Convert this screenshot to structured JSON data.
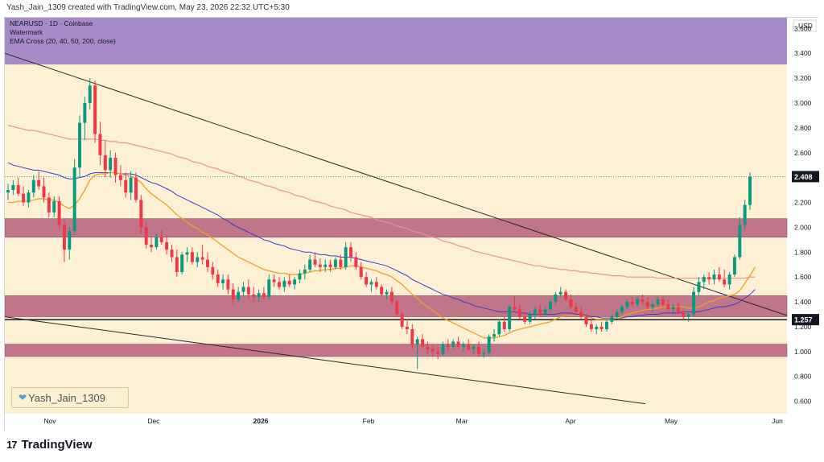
{
  "header": {
    "credit": "Yash_Jain_1309 created with TradingView.com, May 23, 2026 22:32 UTC+5:30"
  },
  "legend": {
    "symbol": "NEARUSD · 1D · Coinbase",
    "line2": "Watermark",
    "indicator": "EMA Cross (20, 40, 50, 200, close)"
  },
  "watermark": {
    "text": "Yash_Jain_1309",
    "icon": "heart-icon"
  },
  "footer": {
    "brand": "TradingView",
    "logo_icon": "tradingview-logo-icon"
  },
  "colors": {
    "background": "#fdf0d4",
    "up": "#089981",
    "down": "#f23645",
    "zone_purple": "#a68bc6",
    "zone_red": "#b5607a",
    "ema_fast": "#f0a020",
    "ema_slow": "#3b3bcf",
    "ema_long": "#e8909a",
    "trendline": "#2a2a2a"
  },
  "chart_data": {
    "type": "candlestick",
    "ylabel": "USD",
    "price_ticks": [
      "0.600",
      "0.800",
      "1.000",
      "1.200",
      "1.400",
      "1.600",
      "1.800",
      "2.000",
      "2.200",
      "2.400",
      "2.600",
      "2.800",
      "3.000",
      "3.200",
      "3.400",
      "3.600"
    ],
    "ylim": [
      0.5,
      3.68
    ],
    "x_ticks": [
      "Nov",
      "Dec",
      "2026",
      "Feb",
      "Mar",
      "Apr",
      "May",
      "Jun"
    ],
    "last_price": "2.408",
    "level_label": "1.257",
    "horizontal_level": 1.257,
    "zones": [
      {
        "name": "upper-supply-zone",
        "from": 3.31,
        "to": 3.74
      },
      {
        "name": "resistance-zone-2",
        "from": 1.92,
        "to": 2.07
      },
      {
        "name": "support-zone-1",
        "from": 1.28,
        "to": 1.45
      },
      {
        "name": "support-zone-2",
        "from": 0.96,
        "to": 1.06
      }
    ],
    "candles": [
      [
        2.28,
        2.35,
        2.22,
        2.3
      ],
      [
        2.3,
        2.38,
        2.26,
        2.34
      ],
      [
        2.34,
        2.4,
        2.25,
        2.27
      ],
      [
        2.27,
        2.33,
        2.17,
        2.2
      ],
      [
        2.2,
        2.3,
        2.16,
        2.28
      ],
      [
        2.28,
        2.42,
        2.24,
        2.38
      ],
      [
        2.38,
        2.45,
        2.3,
        2.33
      ],
      [
        2.33,
        2.4,
        2.2,
        2.24
      ],
      [
        2.24,
        2.28,
        2.08,
        2.12
      ],
      [
        2.12,
        2.25,
        2.08,
        2.21
      ],
      [
        2.21,
        2.25,
        1.98,
        2.02
      ],
      [
        2.02,
        2.06,
        1.72,
        1.82
      ],
      [
        1.82,
        2.0,
        1.74,
        1.97
      ],
      [
        1.97,
        2.55,
        1.94,
        2.48
      ],
      [
        2.48,
        2.9,
        2.4,
        2.84
      ],
      [
        2.84,
        3.05,
        2.7,
        3.0
      ],
      [
        3.0,
        3.2,
        2.95,
        3.14
      ],
      [
        3.14,
        3.18,
        2.68,
        2.75
      ],
      [
        2.75,
        2.85,
        2.5,
        2.58
      ],
      [
        2.58,
        2.7,
        2.4,
        2.46
      ],
      [
        2.46,
        2.62,
        2.4,
        2.56
      ],
      [
        2.56,
        2.6,
        2.36,
        2.42
      ],
      [
        2.42,
        2.5,
        2.33,
        2.38
      ],
      [
        2.38,
        2.44,
        2.24,
        2.28
      ],
      [
        2.28,
        2.45,
        2.22,
        2.4
      ],
      [
        2.4,
        2.44,
        2.2,
        2.22
      ],
      [
        2.22,
        2.26,
        1.95,
        2.0
      ],
      [
        2.0,
        2.04,
        1.83,
        1.86
      ],
      [
        1.86,
        1.92,
        1.8,
        1.84
      ],
      [
        1.84,
        1.95,
        1.82,
        1.92
      ],
      [
        1.92,
        1.98,
        1.86,
        1.88
      ],
      [
        1.88,
        1.94,
        1.78,
        1.82
      ],
      [
        1.82,
        1.86,
        1.72,
        1.76
      ],
      [
        1.76,
        1.82,
        1.6,
        1.64
      ],
      [
        1.64,
        1.8,
        1.62,
        1.78
      ],
      [
        1.78,
        1.84,
        1.72,
        1.8
      ],
      [
        1.8,
        1.84,
        1.7,
        1.72
      ],
      [
        1.72,
        1.8,
        1.68,
        1.76
      ],
      [
        1.76,
        1.86,
        1.7,
        1.74
      ],
      [
        1.74,
        1.8,
        1.64,
        1.68
      ],
      [
        1.68,
        1.72,
        1.58,
        1.62
      ],
      [
        1.62,
        1.66,
        1.52,
        1.55
      ],
      [
        1.55,
        1.62,
        1.5,
        1.58
      ],
      [
        1.58,
        1.62,
        1.46,
        1.5
      ],
      [
        1.5,
        1.55,
        1.38,
        1.42
      ],
      [
        1.42,
        1.52,
        1.4,
        1.48
      ],
      [
        1.48,
        1.56,
        1.44,
        1.52
      ],
      [
        1.52,
        1.58,
        1.42,
        1.46
      ],
      [
        1.46,
        1.52,
        1.4,
        1.44
      ],
      [
        1.44,
        1.5,
        1.4,
        1.47
      ],
      [
        1.47,
        1.52,
        1.42,
        1.44
      ],
      [
        1.44,
        1.62,
        1.42,
        1.58
      ],
      [
        1.58,
        1.62,
        1.52,
        1.56
      ],
      [
        1.56,
        1.6,
        1.5,
        1.52
      ],
      [
        1.52,
        1.6,
        1.48,
        1.57
      ],
      [
        1.57,
        1.62,
        1.52,
        1.54
      ],
      [
        1.54,
        1.6,
        1.5,
        1.58
      ],
      [
        1.58,
        1.66,
        1.55,
        1.63
      ],
      [
        1.63,
        1.7,
        1.58,
        1.66
      ],
      [
        1.66,
        1.78,
        1.64,
        1.74
      ],
      [
        1.74,
        1.8,
        1.68,
        1.7
      ],
      [
        1.7,
        1.75,
        1.64,
        1.68
      ],
      [
        1.68,
        1.74,
        1.64,
        1.7
      ],
      [
        1.7,
        1.74,
        1.64,
        1.68
      ],
      [
        1.68,
        1.76,
        1.66,
        1.74
      ],
      [
        1.74,
        1.78,
        1.66,
        1.68
      ],
      [
        1.68,
        1.88,
        1.66,
        1.84
      ],
      [
        1.84,
        1.88,
        1.72,
        1.76
      ],
      [
        1.76,
        1.8,
        1.66,
        1.68
      ],
      [
        1.68,
        1.72,
        1.58,
        1.6
      ],
      [
        1.6,
        1.64,
        1.52,
        1.54
      ],
      [
        1.54,
        1.58,
        1.48,
        1.56
      ],
      [
        1.56,
        1.6,
        1.5,
        1.52
      ],
      [
        1.52,
        1.54,
        1.44,
        1.46
      ],
      [
        1.46,
        1.5,
        1.42,
        1.48
      ],
      [
        1.48,
        1.52,
        1.38,
        1.4
      ],
      [
        1.4,
        1.42,
        1.28,
        1.3
      ],
      [
        1.3,
        1.32,
        1.18,
        1.2
      ],
      [
        1.2,
        1.26,
        1.14,
        1.18
      ],
      [
        1.18,
        1.22,
        1.02,
        1.06
      ],
      [
        1.06,
        1.12,
        0.86,
        1.1
      ],
      [
        1.1,
        1.14,
        1.02,
        1.04
      ],
      [
        1.04,
        1.08,
        0.98,
        1.02
      ],
      [
        1.02,
        1.06,
        0.96,
        1.0
      ],
      [
        1.0,
        1.04,
        0.94,
        0.98
      ],
      [
        0.98,
        1.08,
        0.96,
        1.06
      ],
      [
        1.06,
        1.1,
        1.0,
        1.04
      ],
      [
        1.04,
        1.1,
        1.02,
        1.08
      ],
      [
        1.08,
        1.12,
        1.02,
        1.04
      ],
      [
        1.04,
        1.08,
        1.0,
        1.06
      ],
      [
        1.06,
        1.1,
        1.0,
        1.02
      ],
      [
        1.02,
        1.06,
        0.98,
        1.04
      ],
      [
        1.04,
        1.08,
        0.96,
        0.98
      ],
      [
        0.98,
        1.02,
        0.95,
        0.99
      ],
      [
        0.99,
        1.14,
        0.97,
        1.12
      ],
      [
        1.12,
        1.18,
        1.08,
        1.14
      ],
      [
        1.14,
        1.26,
        1.12,
        1.24
      ],
      [
        1.24,
        1.28,
        1.16,
        1.18
      ],
      [
        1.18,
        1.38,
        1.16,
        1.36
      ],
      [
        1.36,
        1.44,
        1.32,
        1.34
      ],
      [
        1.34,
        1.38,
        1.26,
        1.28
      ],
      [
        1.28,
        1.32,
        1.22,
        1.24
      ],
      [
        1.24,
        1.32,
        1.22,
        1.3
      ],
      [
        1.3,
        1.36,
        1.26,
        1.34
      ],
      [
        1.34,
        1.38,
        1.28,
        1.3
      ],
      [
        1.3,
        1.36,
        1.28,
        1.34
      ],
      [
        1.34,
        1.42,
        1.32,
        1.4
      ],
      [
        1.4,
        1.48,
        1.38,
        1.46
      ],
      [
        1.46,
        1.52,
        1.44,
        1.48
      ],
      [
        1.48,
        1.5,
        1.4,
        1.42
      ],
      [
        1.42,
        1.46,
        1.34,
        1.36
      ],
      [
        1.36,
        1.4,
        1.3,
        1.32
      ],
      [
        1.32,
        1.36,
        1.26,
        1.28
      ],
      [
        1.28,
        1.3,
        1.2,
        1.22
      ],
      [
        1.22,
        1.26,
        1.16,
        1.18
      ],
      [
        1.18,
        1.22,
        1.14,
        1.2
      ],
      [
        1.2,
        1.24,
        1.16,
        1.18
      ],
      [
        1.18,
        1.26,
        1.16,
        1.24
      ],
      [
        1.24,
        1.3,
        1.22,
        1.28
      ],
      [
        1.28,
        1.34,
        1.26,
        1.32
      ],
      [
        1.32,
        1.38,
        1.3,
        1.36
      ],
      [
        1.36,
        1.42,
        1.34,
        1.4
      ],
      [
        1.4,
        1.44,
        1.36,
        1.38
      ],
      [
        1.38,
        1.44,
        1.36,
        1.42
      ],
      [
        1.42,
        1.46,
        1.38,
        1.4
      ],
      [
        1.4,
        1.44,
        1.34,
        1.36
      ],
      [
        1.36,
        1.4,
        1.32,
        1.38
      ],
      [
        1.38,
        1.44,
        1.36,
        1.42
      ],
      [
        1.42,
        1.44,
        1.36,
        1.38
      ],
      [
        1.38,
        1.42,
        1.32,
        1.34
      ],
      [
        1.34,
        1.38,
        1.3,
        1.36
      ],
      [
        1.36,
        1.4,
        1.3,
        1.32
      ],
      [
        1.32,
        1.34,
        1.26,
        1.28
      ],
      [
        1.28,
        1.32,
        1.24,
        1.3
      ],
      [
        1.3,
        1.52,
        1.28,
        1.48
      ],
      [
        1.48,
        1.6,
        1.44,
        1.56
      ],
      [
        1.56,
        1.62,
        1.5,
        1.6
      ],
      [
        1.6,
        1.64,
        1.54,
        1.58
      ],
      [
        1.58,
        1.66,
        1.54,
        1.62
      ],
      [
        1.62,
        1.68,
        1.56,
        1.58
      ],
      [
        1.58,
        1.66,
        1.52,
        1.54
      ],
      [
        1.54,
        1.64,
        1.5,
        1.62
      ],
      [
        1.62,
        1.78,
        1.6,
        1.76
      ],
      [
        1.76,
        2.08,
        1.74,
        2.02
      ],
      [
        2.02,
        2.22,
        1.98,
        2.18
      ],
      [
        2.18,
        2.44,
        2.14,
        2.408
      ]
    ],
    "ema_20": [
      2.2,
      2.2,
      2.21,
      2.21,
      2.21,
      2.22,
      2.23,
      2.23,
      2.22,
      2.22,
      2.2,
      2.17,
      2.15,
      2.18,
      2.23,
      2.3,
      2.38,
      2.42,
      2.43,
      2.43,
      2.44,
      2.44,
      2.43,
      2.42,
      2.41,
      2.39,
      2.36,
      2.31,
      2.27,
      2.24,
      2.21,
      2.18,
      2.14,
      2.1,
      2.07,
      2.04,
      2.01,
      1.99,
      1.96,
      1.94,
      1.91,
      1.88,
      1.85,
      1.82,
      1.79,
      1.76,
      1.74,
      1.72,
      1.7,
      1.68,
      1.66,
      1.65,
      1.64,
      1.63,
      1.63,
      1.62,
      1.62,
      1.62,
      1.63,
      1.64,
      1.65,
      1.65,
      1.66,
      1.66,
      1.67,
      1.67,
      1.68,
      1.69,
      1.69,
      1.68,
      1.67,
      1.66,
      1.65,
      1.63,
      1.62,
      1.6,
      1.57,
      1.54,
      1.5,
      1.46,
      1.43,
      1.39,
      1.36,
      1.33,
      1.3,
      1.27,
      1.25,
      1.23,
      1.21,
      1.19,
      1.17,
      1.15,
      1.13,
      1.11,
      1.11,
      1.11,
      1.12,
      1.13,
      1.15,
      1.17,
      1.18,
      1.19,
      1.2,
      1.21,
      1.22,
      1.23,
      1.24,
      1.26,
      1.28,
      1.29,
      1.29,
      1.29,
      1.29,
      1.28,
      1.27,
      1.26,
      1.26,
      1.26,
      1.26,
      1.27,
      1.28,
      1.3,
      1.31,
      1.32,
      1.33,
      1.34,
      1.34,
      1.35,
      1.36,
      1.36,
      1.36,
      1.36,
      1.36,
      1.35,
      1.35,
      1.36,
      1.38,
      1.4,
      1.41,
      1.43,
      1.44,
      1.45,
      1.46,
      1.49,
      1.55,
      1.61,
      1.68
    ],
    "ema_50": [
      2.52,
      2.5,
      2.49,
      2.48,
      2.47,
      2.46,
      2.46,
      2.45,
      2.44,
      2.43,
      2.42,
      2.4,
      2.39,
      2.39,
      2.4,
      2.41,
      2.43,
      2.44,
      2.44,
      2.44,
      2.44,
      2.44,
      2.43,
      2.43,
      2.43,
      2.42,
      2.4,
      2.38,
      2.36,
      2.35,
      2.33,
      2.31,
      2.29,
      2.26,
      2.24,
      2.22,
      2.2,
      2.18,
      2.16,
      2.14,
      2.12,
      2.1,
      2.07,
      2.05,
      2.02,
      2.0,
      1.98,
      1.96,
      1.94,
      1.92,
      1.9,
      1.89,
      1.87,
      1.86,
      1.85,
      1.83,
      1.82,
      1.81,
      1.8,
      1.8,
      1.79,
      1.78,
      1.78,
      1.77,
      1.77,
      1.76,
      1.76,
      1.76,
      1.75,
      1.74,
      1.73,
      1.72,
      1.71,
      1.7,
      1.69,
      1.67,
      1.65,
      1.63,
      1.61,
      1.58,
      1.56,
      1.54,
      1.52,
      1.5,
      1.48,
      1.46,
      1.45,
      1.43,
      1.42,
      1.4,
      1.39,
      1.37,
      1.36,
      1.35,
      1.34,
      1.33,
      1.32,
      1.32,
      1.32,
      1.32,
      1.31,
      1.31,
      1.3,
      1.3,
      1.3,
      1.3,
      1.3,
      1.3,
      1.31,
      1.31,
      1.31,
      1.3,
      1.3,
      1.29,
      1.28,
      1.28,
      1.27,
      1.27,
      1.27,
      1.27,
      1.27,
      1.28,
      1.28,
      1.29,
      1.29,
      1.3,
      1.3,
      1.3,
      1.31,
      1.31,
      1.31,
      1.31,
      1.32,
      1.32,
      1.32,
      1.32,
      1.33,
      1.34,
      1.35,
      1.36,
      1.36,
      1.37,
      1.38,
      1.4,
      1.43,
      1.46,
      1.5
    ],
    "ema_200": [
      2.82,
      2.81,
      2.8,
      2.79,
      2.78,
      2.78,
      2.77,
      2.76,
      2.75,
      2.74,
      2.73,
      2.72,
      2.71,
      2.71,
      2.71,
      2.71,
      2.71,
      2.71,
      2.7,
      2.7,
      2.69,
      2.69,
      2.68,
      2.68,
      2.67,
      2.66,
      2.65,
      2.64,
      2.63,
      2.62,
      2.61,
      2.6,
      2.59,
      2.57,
      2.56,
      2.55,
      2.53,
      2.52,
      2.51,
      2.49,
      2.48,
      2.47,
      2.45,
      2.44,
      2.43,
      2.41,
      2.4,
      2.38,
      2.37,
      2.36,
      2.34,
      2.33,
      2.32,
      2.3,
      2.29,
      2.28,
      2.26,
      2.25,
      2.24,
      2.22,
      2.21,
      2.2,
      2.19,
      2.17,
      2.16,
      2.15,
      2.14,
      2.12,
      2.11,
      2.1,
      2.09,
      2.08,
      2.06,
      2.05,
      2.04,
      2.03,
      2.01,
      2.0,
      1.99,
      1.97,
      1.96,
      1.95,
      1.93,
      1.92,
      1.91,
      1.89,
      1.88,
      1.87,
      1.85,
      1.84,
      1.83,
      1.81,
      1.8,
      1.79,
      1.78,
      1.77,
      1.76,
      1.75,
      1.74,
      1.73,
      1.72,
      1.71,
      1.7,
      1.69,
      1.69,
      1.68,
      1.67,
      1.67,
      1.66,
      1.66,
      1.65,
      1.65,
      1.64,
      1.64,
      1.63,
      1.63,
      1.62,
      1.62,
      1.61,
      1.61,
      1.61,
      1.6,
      1.6,
      1.6,
      1.6,
      1.6,
      1.6,
      1.59,
      1.59,
      1.59,
      1.59,
      1.59,
      1.59,
      1.59,
      1.59,
      1.59,
      1.59,
      1.59,
      1.59,
      1.59,
      1.59,
      1.59,
      1.59,
      1.59,
      1.59,
      1.6,
      1.6
    ],
    "trendlines": [
      {
        "name": "descending-resistance-line",
        "from": [
          "start",
          3.4
        ],
        "to": [
          "end",
          1.29
        ]
      },
      {
        "name": "descending-support-line",
        "from": [
          "start",
          1.28
        ],
        "to": [
          "May 20",
          0.58
        ]
      }
    ]
  }
}
